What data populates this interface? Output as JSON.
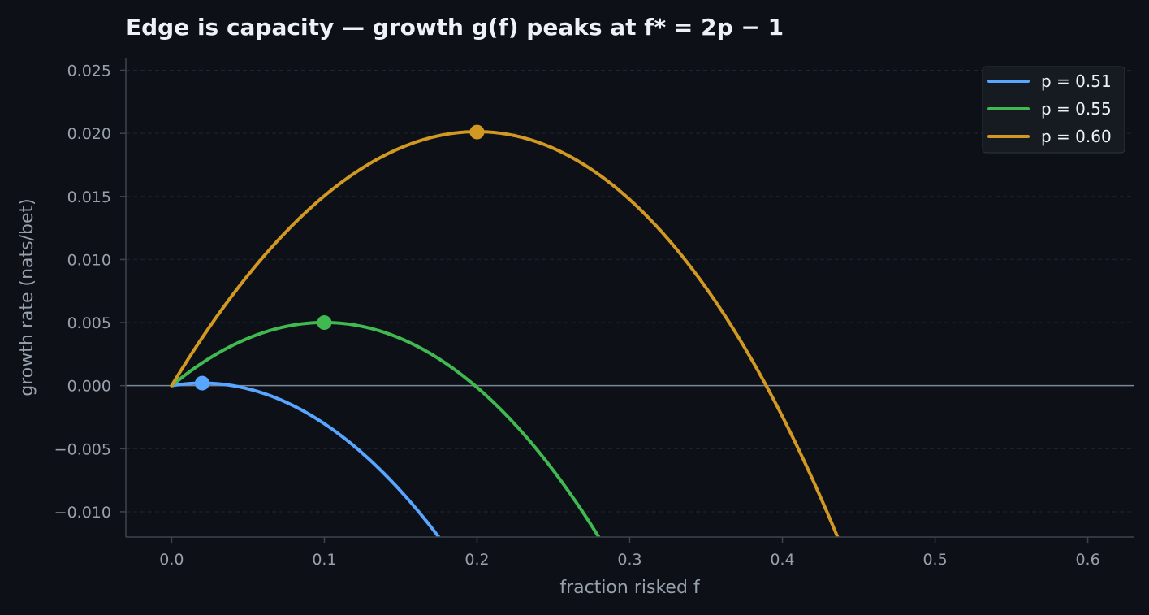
{
  "chart_data": {
    "type": "line",
    "title": "Edge is capacity — growth g(f) peaks at f* = 2p − 1",
    "xlabel": "fraction risked f",
    "ylabel": "growth rate (nats/bet)",
    "xlim": [
      -0.03,
      0.63
    ],
    "ylim": [
      -0.012,
      0.026
    ],
    "x_ticks": [
      0.0,
      0.1,
      0.2,
      0.3,
      0.4,
      0.5,
      0.6
    ],
    "x_tick_labels": [
      "0.0",
      "0.1",
      "0.2",
      "0.3",
      "0.4",
      "0.5",
      "0.6"
    ],
    "y_ticks": [
      -0.01,
      -0.005,
      0.0,
      0.005,
      0.01,
      0.015,
      0.02,
      0.025
    ],
    "y_tick_labels": [
      "−0.010",
      "−0.005",
      "0.000",
      "0.005",
      "0.010",
      "0.015",
      "0.020",
      "0.025"
    ],
    "grid": "horizontal dashed",
    "zero_line": true,
    "legend_position": "top-right",
    "function": "g(f) = p·ln(1+f) + (1−p)·ln(1−f)",
    "series": [
      {
        "name": "p = 0.51",
        "p": 0.51,
        "color": "#58a6ff",
        "peak": {
          "f": 0.02,
          "g": 0.0002
        },
        "points": [
          [
            0.0,
            0.0
          ],
          [
            0.02,
            0.0002
          ],
          [
            0.05,
            -0.0008
          ],
          [
            0.1,
            -0.003
          ],
          [
            0.15,
            -0.0083
          ],
          [
            0.175,
            -0.0119
          ]
        ]
      },
      {
        "name": "p = 0.55",
        "p": 0.55,
        "color": "#3fb950",
        "peak": {
          "f": 0.1,
          "g": 0.005
        },
        "points": [
          [
            0.0,
            0.0
          ],
          [
            0.05,
            0.0038
          ],
          [
            0.1,
            0.005
          ],
          [
            0.15,
            0.0037
          ],
          [
            0.2,
            -0.0002
          ],
          [
            0.25,
            -0.0071
          ],
          [
            0.28,
            -0.0121
          ]
        ]
      },
      {
        "name": "p = 0.60",
        "p": 0.6,
        "color": "#d29922",
        "peak": {
          "f": 0.2,
          "g": 0.0201
        },
        "points": [
          [
            0.0,
            0.0
          ],
          [
            0.1,
            0.015
          ],
          [
            0.2,
            0.0201
          ],
          [
            0.3,
            0.0147
          ],
          [
            0.39,
            0.0
          ],
          [
            0.436,
            -0.0121
          ]
        ]
      }
    ]
  },
  "colors": {
    "background": "#0d1017",
    "text": "#eef1f6",
    "muted": "#98a0ab",
    "axis": "#3d444d",
    "grid": "#1f2530",
    "zero_line": "#7b8794",
    "legend_bg": "#161b22",
    "legend_border": "#30363d"
  }
}
